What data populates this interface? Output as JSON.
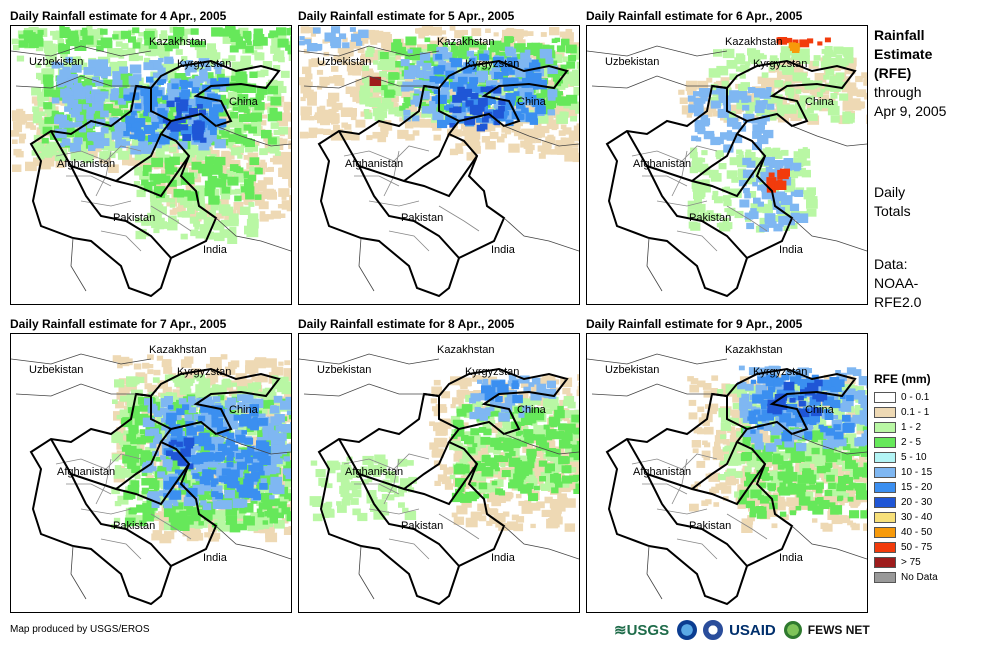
{
  "panels": [
    {
      "title": "Daily Rainfall estimate for 4 Apr., 2005",
      "labels": {
        "kazakhstan": "Kazakhstan",
        "uzbekistan": "Uzbekistan",
        "kyrgyzstan": "Kyrgyzstan",
        "china": "China",
        "afghanistan": "Afghanistan",
        "pakistan": "Pakistan",
        "india": "India"
      }
    },
    {
      "title": "Daily Rainfall estimate for 5 Apr., 2005",
      "labels": {
        "kazakhstan": "Kazakhstan",
        "uzbekistan": "Uzbekistan",
        "kyrgyzstan": "Kyrgyzstan",
        "china": "China",
        "afghanistan": "Afghanistan",
        "pakistan": "Pakistan",
        "india": "India"
      }
    },
    {
      "title": "Daily Rainfall estimate for 6 Apr., 2005",
      "labels": {
        "kazakhstan": "Kazakhstan",
        "uzbekistan": "Uzbekistan",
        "kyrgyzstan": "Kyrgyzstan",
        "china": "China",
        "afghanistan": "Afghanistan",
        "pakistan": "Pakistan",
        "india": "India"
      }
    },
    {
      "title": "Daily Rainfall estimate for 7 Apr., 2005",
      "labels": {
        "kazakhstan": "Kazakhstan",
        "uzbekistan": "Uzbekistan",
        "kyrgyzstan": "Kyrgyzstan",
        "china": "China",
        "afghanistan": "Afghanistan",
        "pakistan": "Pakistan",
        "india": "India"
      }
    },
    {
      "title": "Daily Rainfall estimate for 8 Apr., 2005",
      "labels": {
        "kazakhstan": "Kazakhstan",
        "uzbekistan": "Uzbekistan",
        "kyrgyzstan": "Kyrgyzstan",
        "china": "China",
        "afghanistan": "Afghanistan",
        "pakistan": "Pakistan",
        "india": "India"
      }
    },
    {
      "title": "Daily Rainfall estimate for 9 Apr., 2005",
      "labels": {
        "kazakhstan": "Kazakhstan",
        "uzbekistan": "Uzbekistan",
        "kyrgyzstan": "Kyrgyzstan",
        "china": "China",
        "afghanistan": "Afghanistan",
        "pakistan": "Pakistan",
        "india": "India"
      }
    }
  ],
  "sidebar": {
    "title_lines": [
      "Rainfall",
      "Estimate",
      "(RFE)"
    ],
    "through_lines": [
      "through",
      "Apr 9, 2005"
    ],
    "totals_lines": [
      "Daily",
      "Totals"
    ],
    "data_lines": [
      "Data:",
      "NOAA-",
      "RFE2.0"
    ]
  },
  "legend": {
    "title": "RFE (mm)",
    "items": [
      {
        "label": "0 - 0.1",
        "color": "#ffffff"
      },
      {
        "label": "0.1 - 1",
        "color": "#eed9b4"
      },
      {
        "label": "1 - 2",
        "color": "#b9f7a4"
      },
      {
        "label": "2 - 5",
        "color": "#66e85a"
      },
      {
        "label": "5 - 10",
        "color": "#b3f4f5"
      },
      {
        "label": "10 - 15",
        "color": "#7fb7f2"
      },
      {
        "label": "15 - 20",
        "color": "#3b8ff0"
      },
      {
        "label": "20 - 30",
        "color": "#1f56d6"
      },
      {
        "label": "30 - 40",
        "color": "#f7e07a"
      },
      {
        "label": "40 - 50",
        "color": "#f79a0a"
      },
      {
        "label": "50 - 75",
        "color": "#f23b0c"
      },
      {
        "label": "> 75",
        "color": "#9e1c1c"
      },
      {
        "label": "No Data",
        "color": "#999999"
      }
    ]
  },
  "footer": {
    "credit": "Map produced by USGS/EROS",
    "logos": {
      "usgs": "≋USGS",
      "usaid": "USAID",
      "fews": "FEWS NET"
    }
  }
}
